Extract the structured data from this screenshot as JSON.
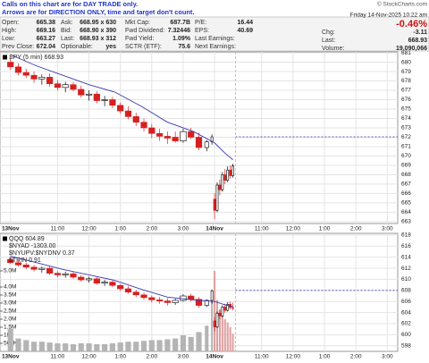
{
  "header": {
    "notice": [
      "Calls on this chart are for DAY TRADE only.",
      "Arrows are for DIRECTION ONLY, time and target don't count."
    ],
    "copyright": "© StockCharts.com",
    "quote": [
      [
        [
          "Open:",
          "665.38"
        ],
        [
          "Ask:",
          "668.95 x 630"
        ],
        [
          "Mkt Cap:",
          "687.7B"
        ],
        [
          "P/E:",
          "16.44"
        ]
      ],
      [
        [
          "High:",
          "669.16"
        ],
        [
          "Bid:",
          "668.90 x 390"
        ],
        [
          "Fwd Dividend:",
          "7.32446"
        ],
        [
          "EPS:",
          "40.69"
        ]
      ],
      [
        [
          "Low:",
          "663.27"
        ],
        [
          "Last:",
          "668.93 x 312"
        ],
        [
          "Fwd Yield:",
          "1.09%"
        ],
        [
          "Last Earnings:"
        ]
      ],
      [
        [
          "Prev Close:",
          "672.04"
        ],
        [
          "Optionable:",
          "yes"
        ],
        [
          "SCTR (ETF):",
          "75.6"
        ],
        [
          "Next Earnings:"
        ]
      ]
    ],
    "datetime": "Friday   14-Nov-2025   10:22 am",
    "change_pct": "-0.46%",
    "stats": [
      [
        "Chg:",
        "-3.11"
      ],
      [
        "Last:",
        "668.93"
      ],
      [
        "Volume:",
        "19,090,066"
      ]
    ]
  },
  "chart_data": [
    {
      "type": "candlestick",
      "xlim": [
        -4,
        148
      ],
      "ylim": [
        662.8,
        681.1
      ],
      "yticks": [
        663,
        664,
        665,
        666,
        667,
        668,
        669,
        670,
        671,
        672,
        673,
        674,
        675,
        676,
        677,
        678,
        679,
        680,
        681
      ],
      "xticks": [
        {
          "value": 0,
          "label": "13Nov"
        },
        {
          "value": 18,
          "label": "11:00"
        },
        {
          "value": 30,
          "label": "12:00"
        },
        {
          "value": 42,
          "label": "1:00"
        },
        {
          "value": 54,
          "label": "2:00"
        },
        {
          "value": 66,
          "label": "3:00"
        },
        {
          "value": 78,
          "label": "14Nov"
        },
        {
          "value": 96,
          "label": "11:00"
        },
        {
          "value": 108,
          "label": "12:00"
        },
        {
          "value": 120,
          "label": "1:00"
        },
        {
          "value": 132,
          "label": "2:00"
        },
        {
          "value": 144,
          "label": "3:00"
        }
      ],
      "grid": true,
      "hlines": [
        672.04
      ],
      "vline": 86,
      "series": [
        {
          "type": "candlestick",
          "name": "SPY (5 min) 668.93",
          "color": "#000000",
          "down_color": "#d62020",
          "x": [
            0,
            3,
            6,
            9,
            12,
            15,
            18,
            21,
            24,
            27,
            30,
            33,
            36,
            39,
            42,
            45,
            48,
            51,
            54,
            57,
            60,
            63,
            66,
            69,
            72,
            75,
            77,
            78,
            79,
            80,
            81,
            82,
            83,
            84,
            85
          ],
          "open": [
            680.0,
            679.5,
            678.9,
            678.6,
            678.2,
            678.4,
            677.7,
            677.3,
            677.6,
            677.1,
            676.5,
            676.6,
            675.9,
            676.0,
            675.4,
            674.8,
            674.2,
            673.6,
            673.0,
            672.4,
            672.1,
            672.0,
            671.6,
            672.6,
            672.0,
            670.9,
            671.5,
            665.4,
            664.2,
            666.9,
            666.4,
            668.0,
            667.4,
            668.5,
            667.9
          ],
          "high": [
            680.6,
            679.9,
            679.3,
            679.0,
            678.7,
            678.8,
            678.1,
            677.9,
            677.9,
            677.5,
            677.0,
            676.9,
            676.4,
            676.3,
            675.7,
            675.3,
            674.6,
            674.0,
            673.4,
            672.9,
            672.6,
            672.6,
            672.9,
            673.0,
            672.5,
            671.7,
            672.3,
            666.0,
            667.2,
            667.5,
            668.3,
            668.6,
            668.9,
            669.0,
            669.16
          ],
          "low": [
            679.2,
            678.6,
            678.3,
            677.8,
            677.6,
            677.4,
            677.0,
            676.8,
            676.9,
            676.2,
            675.9,
            675.6,
            675.3,
            675.1,
            674.5,
            673.9,
            673.2,
            672.6,
            671.9,
            671.6,
            671.3,
            671.4,
            671.4,
            671.8,
            670.6,
            670.5,
            671.2,
            663.27,
            664.0,
            665.8,
            666.2,
            667.0,
            667.2,
            667.6,
            667.7
          ],
          "close": [
            679.5,
            678.9,
            678.6,
            678.2,
            678.4,
            677.7,
            677.3,
            677.6,
            677.1,
            676.5,
            676.6,
            675.9,
            676.0,
            675.4,
            674.8,
            674.2,
            673.6,
            673.0,
            672.4,
            672.1,
            671.9,
            671.6,
            672.6,
            672.0,
            670.9,
            671.5,
            672.04,
            664.2,
            666.9,
            666.4,
            668.0,
            667.4,
            668.5,
            667.9,
            668.93
          ]
        },
        {
          "type": "line",
          "color": "#3a3ab0",
          "x": [
            0,
            10,
            20,
            30,
            40,
            50,
            60,
            70,
            78,
            82,
            85
          ],
          "values": [
            680.8,
            679.6,
            678.6,
            677.6,
            676.8,
            675.3,
            673.6,
            672.6,
            671.4,
            670.3,
            669.6
          ]
        }
      ]
    },
    {
      "type": "candlestick",
      "xlim": [
        -4,
        148
      ],
      "ylim": [
        597.0,
        618.3
      ],
      "yticks": [
        598,
        600,
        602,
        604,
        606,
        608,
        610,
        612,
        614,
        616,
        618
      ],
      "y2lim": [
        0,
        7330000
      ],
      "y2ticks": [
        {
          "value": 500000,
          "label": "500K"
        },
        {
          "value": 1000000,
          "label": "1M"
        },
        {
          "value": 1500000,
          "label": "1.5M"
        },
        {
          "value": 2000000,
          "label": "2.0M"
        },
        {
          "value": 2500000,
          "label": "2.5M"
        },
        {
          "value": 3000000,
          "label": "3.0M"
        },
        {
          "value": 3500000,
          "label": "3.5M"
        },
        {
          "value": 4000000,
          "label": "4.0M"
        },
        {
          "value": 5000000,
          "label": "5.0M"
        }
      ],
      "xticks": [
        {
          "value": 0,
          "label": "13Nov"
        },
        {
          "value": 18,
          "label": "11:00"
        },
        {
          "value": 30,
          "label": "12:00"
        },
        {
          "value": 42,
          "label": "1:00"
        },
        {
          "value": 54,
          "label": "2:00"
        },
        {
          "value": 66,
          "label": "3:00"
        },
        {
          "value": 78,
          "label": "14Nov"
        },
        {
          "value": 96,
          "label": "11:00"
        },
        {
          "value": 108,
          "label": "12:00"
        },
        {
          "value": 120,
          "label": "1:00"
        },
        {
          "value": 132,
          "label": "2:00"
        },
        {
          "value": 144,
          "label": "3:00"
        }
      ],
      "grid": true,
      "hlines": [
        608
      ],
      "vline": 86,
      "annotations": [
        "$NYAD -1303.00",
        "$NYUPV:$NYDNV 0.37",
        "$TRIN 0.91"
      ],
      "series": [
        {
          "type": "bar",
          "axis": "y2",
          "color": "#b4b4b4",
          "x": [
            0,
            3,
            6,
            9,
            12,
            15,
            18,
            21,
            24,
            27,
            30,
            33,
            36,
            39,
            42,
            45,
            48,
            51,
            54,
            57,
            60,
            63,
            66,
            69,
            72,
            75,
            77,
            78,
            79,
            80,
            81,
            82,
            83,
            84,
            85
          ],
          "values": [
            1400000,
            800000,
            700000,
            600000,
            600000,
            550000,
            500000,
            500000,
            450000,
            500000,
            500000,
            450000,
            450000,
            500000,
            550000,
            600000,
            600000,
            650000,
            700000,
            700000,
            750000,
            800000,
            1000000,
            900000,
            1200000,
            1600000,
            3400000,
            5000000,
            3200000,
            2600000,
            2200000,
            2000000,
            1800000,
            1500000,
            1100000
          ]
        },
        {
          "type": "candlestick",
          "name": "QQQ 604.89",
          "color": "#000000",
          "down_color": "#d62020",
          "x": [
            0,
            3,
            6,
            9,
            12,
            15,
            18,
            21,
            24,
            27,
            30,
            33,
            36,
            39,
            42,
            45,
            48,
            51,
            54,
            57,
            60,
            63,
            66,
            69,
            72,
            75,
            77,
            78,
            79,
            80,
            81,
            82,
            83,
            84,
            85
          ],
          "open": [
            613.6,
            613.0,
            612.6,
            612.2,
            611.8,
            612.0,
            611.1,
            610.8,
            611.0,
            610.4,
            609.9,
            610.1,
            609.3,
            609.5,
            608.9,
            608.3,
            607.7,
            607.2,
            606.7,
            606.3,
            606.1,
            605.8,
            606.2,
            607.0,
            606.4,
            605.3,
            606.2,
            602.5,
            601.4,
            603.9,
            603.4,
            605.0,
            604.4,
            605.5,
            604.9
          ],
          "high": [
            614.0,
            613.4,
            613.0,
            612.6,
            612.3,
            612.3,
            611.5,
            611.4,
            611.3,
            610.8,
            610.5,
            610.4,
            609.9,
            609.8,
            609.2,
            608.8,
            608.1,
            607.6,
            607.1,
            606.8,
            606.6,
            606.5,
            607.3,
            607.4,
            606.8,
            606.4,
            608.2,
            603.2,
            604.2,
            604.5,
            605.3,
            605.6,
            605.9,
            606.0,
            605.8
          ],
          "low": [
            612.8,
            612.3,
            611.8,
            611.4,
            611.2,
            610.8,
            610.4,
            610.3,
            610.1,
            609.6,
            609.4,
            609.0,
            608.8,
            608.6,
            607.9,
            607.4,
            606.8,
            606.3,
            605.8,
            605.6,
            605.3,
            605.4,
            606.0,
            606.0,
            604.9,
            605.0,
            605.6,
            600.6,
            601.2,
            602.8,
            603.2,
            604.0,
            604.2,
            604.6,
            604.4
          ],
          "close": [
            613.0,
            612.6,
            612.2,
            611.8,
            612.0,
            611.1,
            610.8,
            611.0,
            610.4,
            609.9,
            610.1,
            609.3,
            609.5,
            608.9,
            608.3,
            607.7,
            607.2,
            606.7,
            606.3,
            606.1,
            605.8,
            606.2,
            607.0,
            606.4,
            605.3,
            606.2,
            607.9,
            601.4,
            603.9,
            603.4,
            605.0,
            604.4,
            605.5,
            604.9,
            604.89
          ]
        },
        {
          "type": "line",
          "color": "#3a3ab0",
          "x": [
            0,
            10,
            20,
            30,
            40,
            50,
            60,
            70,
            78,
            82,
            85
          ],
          "values": [
            614.2,
            613.0,
            611.8,
            610.8,
            609.8,
            608.2,
            606.8,
            606.3,
            606.0,
            605.4,
            605.1
          ]
        }
      ]
    }
  ]
}
